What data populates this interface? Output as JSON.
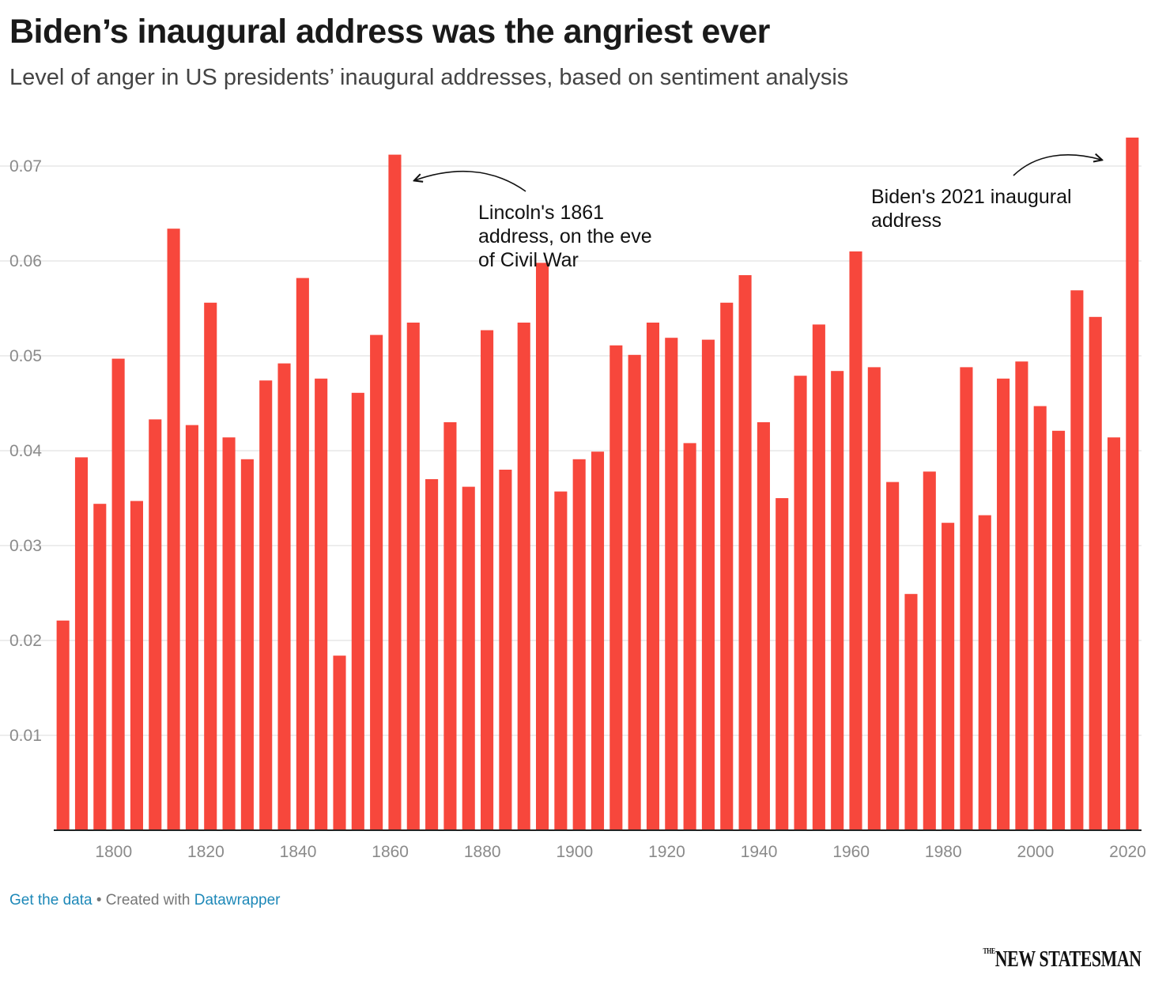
{
  "title": "Biden’s inaugural address was the angriest ever",
  "subtitle": "Level of anger in US presidents’ inaugural addresses, based on sentiment analysis",
  "footer": {
    "get_data": "Get the data",
    "separator": " • Created with ",
    "tool": "Datawrapper"
  },
  "logo": {
    "small": "THE",
    "main": "NEW STATESMAN"
  },
  "colors": {
    "bar": "#f7473c",
    "grid": "#e2e2e2",
    "axis_text": "#8a8a8a"
  },
  "chart_data": {
    "type": "bar",
    "xlabel": "",
    "ylabel": "",
    "xlim": [
      1787,
      2023
    ],
    "ylim": [
      0,
      0.075
    ],
    "yticks": [
      0.01,
      0.02,
      0.03,
      0.04,
      0.05,
      0.06,
      0.07
    ],
    "ytick_labels": [
      "0.01",
      "0.02",
      "0.03",
      "0.04",
      "0.05",
      "0.06",
      "0.07"
    ],
    "xticks": [
      1800,
      1820,
      1840,
      1860,
      1880,
      1900,
      1920,
      1940,
      1960,
      1980,
      2000,
      2020
    ],
    "xtick_labels": [
      "1800",
      "1820",
      "1840",
      "1860",
      "1880",
      "1900",
      "1920",
      "1940",
      "1960",
      "1980",
      "2000",
      "2020"
    ],
    "x": [
      1789,
      1793,
      1797,
      1801,
      1805,
      1809,
      1813,
      1817,
      1821,
      1825,
      1829,
      1833,
      1837,
      1841,
      1845,
      1849,
      1853,
      1857,
      1861,
      1865,
      1869,
      1873,
      1877,
      1881,
      1885,
      1889,
      1893,
      1897,
      1901,
      1905,
      1909,
      1913,
      1917,
      1921,
      1925,
      1929,
      1933,
      1937,
      1941,
      1945,
      1949,
      1953,
      1957,
      1961,
      1965,
      1969,
      1973,
      1977,
      1981,
      1985,
      1989,
      1993,
      1997,
      2001,
      2005,
      2009,
      2013,
      2017,
      2021
    ],
    "values": [
      0.0221,
      0.0393,
      0.0344,
      0.0497,
      0.0347,
      0.0433,
      0.0634,
      0.0427,
      0.0556,
      0.0414,
      0.0391,
      0.0474,
      0.0492,
      0.0582,
      0.0476,
      0.0184,
      0.0461,
      0.0522,
      0.0712,
      0.0535,
      0.037,
      0.043,
      0.0362,
      0.0527,
      0.038,
      0.0535,
      0.0598,
      0.0357,
      0.0391,
      0.0399,
      0.0511,
      0.0501,
      0.0535,
      0.0519,
      0.0408,
      0.0517,
      0.0556,
      0.0585,
      0.043,
      0.035,
      0.0479,
      0.0533,
      0.0484,
      0.061,
      0.0488,
      0.0367,
      0.0249,
      0.0378,
      0.0324,
      0.0488,
      0.0332,
      0.0476,
      0.0494,
      0.0447,
      0.0421,
      0.0569,
      0.0541,
      0.0414,
      0.073
    ],
    "annotations": [
      {
        "year": 1861,
        "lines": [
          "Lincoln's 1861",
          "address, on the eve",
          "of Civil War"
        ]
      },
      {
        "year": 2021,
        "lines": [
          "Biden's 2021 inaugural",
          "address"
        ]
      }
    ]
  }
}
